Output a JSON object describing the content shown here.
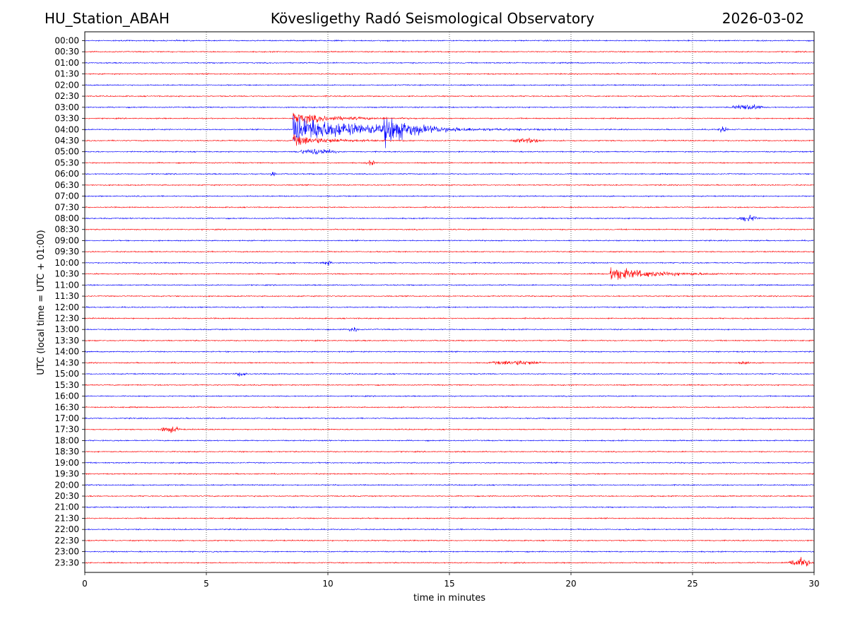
{
  "header": {
    "station": "HU_Station_ABAH",
    "title": "Kövesligethy Radó Seismological Observatory",
    "date": "2026-03-02"
  },
  "chart_data": {
    "type": "line",
    "title": "Kövesligethy Radó Seismological Observatory",
    "xlabel": "time in minutes",
    "ylabel": "UTC (local time = UTC + 01:00)",
    "xlim": [
      0,
      30
    ],
    "x_ticks": [
      0,
      5,
      10,
      15,
      20,
      25,
      30
    ],
    "grid": "vertical dotted lines at x ticks",
    "colors": {
      "even_row": "#0000ff",
      "odd_row": "#ff0000"
    },
    "rows": [
      "00:00",
      "00:30",
      "01:00",
      "01:30",
      "02:00",
      "02:30",
      "03:00",
      "03:30",
      "04:00",
      "04:30",
      "05:00",
      "05:30",
      "06:00",
      "06:30",
      "07:00",
      "07:30",
      "08:00",
      "08:30",
      "09:00",
      "09:30",
      "10:00",
      "10:30",
      "11:00",
      "11:30",
      "12:00",
      "12:30",
      "13:00",
      "13:30",
      "14:00",
      "14:30",
      "15:00",
      "15:30",
      "16:00",
      "16:30",
      "17:00",
      "17:30",
      "18:00",
      "18:30",
      "19:00",
      "19:30",
      "20:00",
      "20:30",
      "21:00",
      "21:30",
      "22:00",
      "22:30",
      "23:00",
      "23:30"
    ],
    "events": [
      {
        "row": "03:00",
        "start": 26.5,
        "end": 28.0,
        "amp": 0.35,
        "kind": "burst"
      },
      {
        "row": "03:30",
        "start": 8.55,
        "end": 15.0,
        "amp": 0.7,
        "kind": "quake"
      },
      {
        "row": "04:00",
        "start": 8.55,
        "end": 20.0,
        "amp": 1.8,
        "kind": "quake"
      },
      {
        "row": "04:00",
        "start": 12.3,
        "end": 16.0,
        "amp": 1.7,
        "kind": "quake"
      },
      {
        "row": "04:00",
        "start": 26.0,
        "end": 26.5,
        "amp": 0.3,
        "kind": "burst"
      },
      {
        "row": "04:30",
        "start": 8.55,
        "end": 14.0,
        "amp": 0.7,
        "kind": "quake"
      },
      {
        "row": "04:30",
        "start": 17.5,
        "end": 19.0,
        "amp": 0.25,
        "kind": "burst"
      },
      {
        "row": "05:00",
        "start": 8.6,
        "end": 10.5,
        "amp": 0.35,
        "kind": "burst"
      },
      {
        "row": "05:30",
        "start": 11.5,
        "end": 12.0,
        "amp": 0.25,
        "kind": "burst"
      },
      {
        "row": "06:00",
        "start": 7.6,
        "end": 7.9,
        "amp": 0.3,
        "kind": "burst"
      },
      {
        "row": "08:00",
        "start": 26.8,
        "end": 27.8,
        "amp": 0.35,
        "kind": "burst"
      },
      {
        "row": "10:00",
        "start": 9.7,
        "end": 10.2,
        "amp": 0.25,
        "kind": "burst"
      },
      {
        "row": "10:30",
        "start": 21.6,
        "end": 28.0,
        "amp": 0.9,
        "kind": "quake"
      },
      {
        "row": "13:00",
        "start": 10.8,
        "end": 11.3,
        "amp": 0.3,
        "kind": "burst"
      },
      {
        "row": "14:30",
        "start": 16.5,
        "end": 19.0,
        "amp": 0.25,
        "kind": "burst"
      },
      {
        "row": "14:30",
        "start": 26.8,
        "end": 27.4,
        "amp": 0.25,
        "kind": "burst"
      },
      {
        "row": "15:00",
        "start": 6.2,
        "end": 6.7,
        "amp": 0.3,
        "kind": "burst"
      },
      {
        "row": "17:30",
        "start": 3.0,
        "end": 4.0,
        "amp": 0.35,
        "kind": "burst"
      },
      {
        "row": "23:30",
        "start": 28.8,
        "end": 30.0,
        "amp": 0.55,
        "kind": "burst"
      }
    ]
  }
}
